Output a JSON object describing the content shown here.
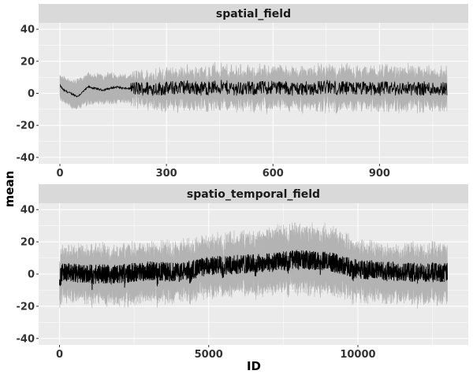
{
  "chart_data": {
    "type": "line",
    "xlabel": "ID",
    "ylabel": "mean",
    "legend": "none",
    "grid": true,
    "colors": {
      "panel_background": "#ebebeb",
      "strip_background": "#d9d9d9",
      "ribbon": "#b3b3b3",
      "line": "#000000",
      "gridline": "#ffffff"
    },
    "panels": [
      {
        "title": "spatial_field",
        "xlim": [
          -60,
          1150
        ],
        "ylim": [
          -44,
          44
        ],
        "x_ticks": [
          0,
          300,
          600,
          900
        ],
        "x_tick_labels": [
          "0",
          "300",
          "600",
          "900"
        ],
        "y_ticks": [
          -40,
          -20,
          0,
          20,
          40
        ],
        "y_tick_labels": [
          "-40",
          "-20",
          "0",
          "20",
          "40"
        ],
        "x_range": [
          0,
          1090
        ],
        "series": [
          {
            "x": [
              0,
              10,
              20,
              30,
              40,
              50,
              60,
              70,
              80,
              100,
              120,
              140,
              160,
              180,
              200,
              250,
              300,
              350,
              400,
              450,
              500,
              550,
              600,
              650,
              700,
              750,
              800,
              850,
              900,
              950,
              1000,
              1050,
              1090
            ],
            "mean": [
              5,
              2,
              1,
              0,
              -1,
              -2,
              0,
              2,
              4,
              3,
              2,
              3,
              4,
              3,
              3,
              3,
              3,
              4,
              3,
              4,
              3,
              3,
              4,
              3,
              3,
              4,
              3,
              3,
              3,
              3,
              3,
              3,
              3
            ],
            "lower": [
              -2,
              -5,
              -6,
              -7,
              -8,
              -9,
              -7,
              -6,
              -5,
              -5,
              -5,
              -5,
              -4,
              -4,
              -4,
              -5,
              -6,
              -6,
              -6,
              -5,
              -6,
              -6,
              -6,
              -6,
              -6,
              -6,
              -6,
              -6,
              -6,
              -7,
              -6,
              -6,
              -6
            ],
            "upper": [
              10,
              9,
              8,
              7,
              6,
              7,
              8,
              9,
              11,
              10,
              10,
              11,
              10,
              10,
              9,
              10,
              11,
              12,
              12,
              13,
              12,
              12,
              13,
              12,
              12,
              13,
              12,
              12,
              12,
              13,
              12,
              12,
              12
            ]
          }
        ]
      },
      {
        "title": "spatio_temporal_field",
        "xlim": [
          -700,
          13700
        ],
        "ylim": [
          -44,
          44
        ],
        "x_ticks": [
          0,
          5000,
          10000
        ],
        "x_tick_labels": [
          "0",
          "5000",
          "10000"
        ],
        "y_ticks": [
          -40,
          -20,
          0,
          20,
          40
        ],
        "y_tick_labels": [
          "-40",
          "-20",
          "0",
          "20",
          "40"
        ],
        "x_range": [
          0,
          13000
        ],
        "series": [
          {
            "x": [
              0,
              1000,
              2000,
              3000,
              4000,
              5000,
              6000,
              7000,
              8000,
              9000,
              10000,
              11000,
              12000,
              13000
            ],
            "mean": [
              1,
              0,
              0,
              2,
              1,
              5,
              6,
              7,
              9,
              8,
              3,
              2,
              1,
              1
            ],
            "lower": [
              -10,
              -11,
              -12,
              -10,
              -10,
              -7,
              -6,
              -5,
              -4,
              -5,
              -9,
              -10,
              -11,
              -11
            ],
            "upper": [
              10,
              11,
              11,
              12,
              13,
              16,
              19,
              21,
              23,
              22,
              14,
              12,
              12,
              12
            ]
          }
        ]
      }
    ]
  }
}
